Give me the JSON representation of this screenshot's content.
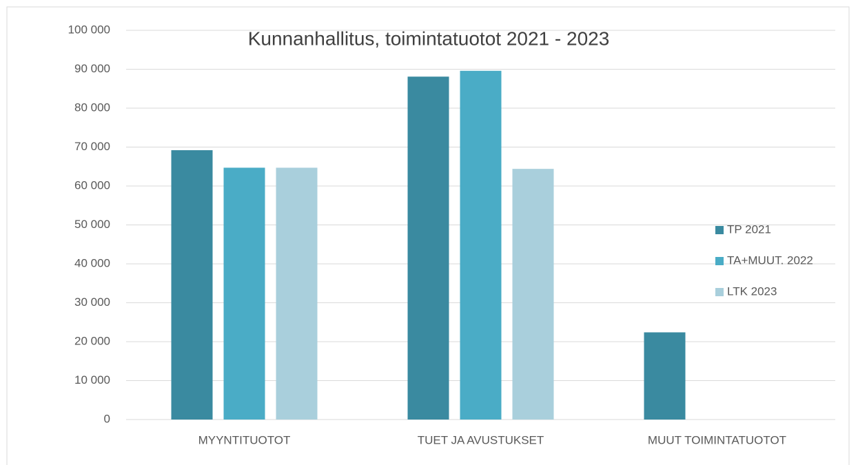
{
  "chart_data": {
    "type": "bar",
    "title": "Kunnanhallitus, toimintatuotot 2021 - 2023",
    "categories": [
      "MYYNTITUOTOT",
      "TUET JA AVUSTUKSET",
      "MUUT TOIMINTATUOTOT"
    ],
    "series": [
      {
        "name": "TP 2021",
        "color": "#3a8aa0",
        "values": [
          69200,
          88100,
          22400
        ]
      },
      {
        "name": "TA+MUUT. 2022",
        "color": "#4aacc6",
        "values": [
          64700,
          89600,
          0
        ]
      },
      {
        "name": "LTK 2023",
        "color": "#a9cfdc",
        "values": [
          64700,
          64400,
          0
        ]
      }
    ],
    "ylim": [
      0,
      100000
    ],
    "yticks": [
      0,
      {
        "value": 10000,
        "label": "10 000"
      },
      {
        "value": 20000,
        "label": "20 000"
      },
      {
        "value": 30000,
        "label": "30 000"
      },
      {
        "value": 40000,
        "label": "40 000"
      },
      {
        "value": 50000,
        "label": "50 000"
      },
      {
        "value": 60000,
        "label": "60 000"
      },
      {
        "value": 70000,
        "label": "70 000"
      },
      {
        "value": 80000,
        "label": "80 000"
      },
      {
        "value": 90000,
        "label": "90 000"
      },
      {
        "value": 100000,
        "label": "100 000"
      }
    ],
    "grid": true,
    "legend": "right"
  }
}
